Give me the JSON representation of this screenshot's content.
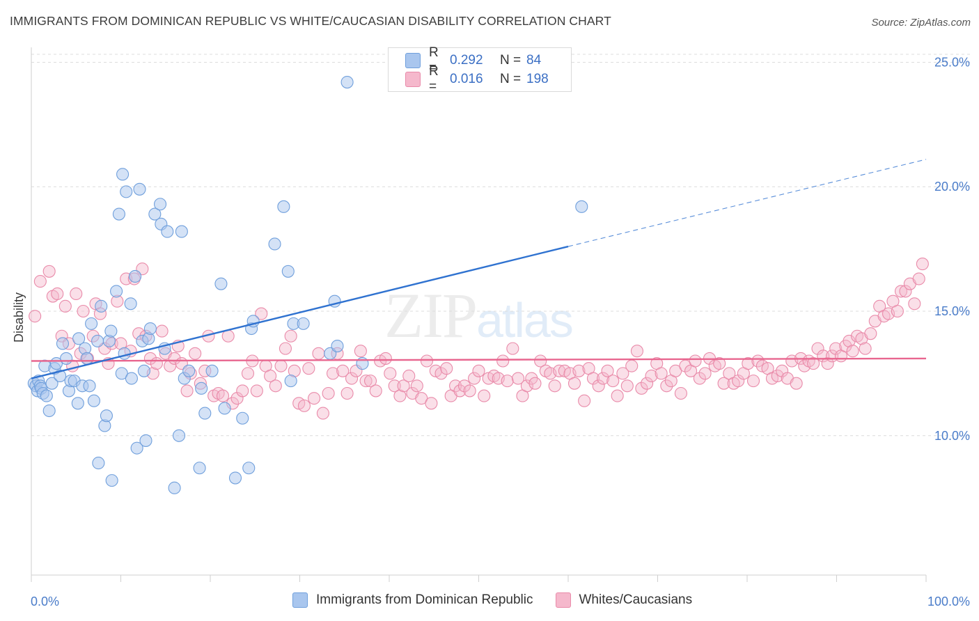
{
  "title": "IMMIGRANTS FROM DOMINICAN REPUBLIC VS WHITE/CAUCASIAN DISABILITY CORRELATION CHART",
  "source": "Source: ZipAtlas.com",
  "watermark": {
    "zip": "ZIP",
    "atlas": "atlas"
  },
  "legend_top": [
    {
      "r_label": "R =",
      "r_value": "0.292",
      "n_label": "N =",
      "n_value": "84"
    },
    {
      "r_label": "R =",
      "r_value": "0.016",
      "n_label": "N =",
      "n_value": "198"
    }
  ],
  "legend_bottom": [
    {
      "label": "Immigrants from Dominican Republic"
    },
    {
      "label": "Whites/Caucasians"
    }
  ],
  "colors": {
    "blue_fill": "#a9c6ee",
    "blue_stroke": "#6f9fdc",
    "blue_line": "#2f72d0",
    "pink_fill": "#f5b8cc",
    "pink_stroke": "#e98aa9",
    "pink_line": "#e8668f",
    "tick_text": "#4a7cc9",
    "grid": "#dcdcdc"
  },
  "chart_data": {
    "type": "scatter",
    "title": "IMMIGRANTS FROM DOMINICAN REPUBLIC VS WHITE/CAUCASIAN DISABILITY CORRELATION CHART",
    "xlabel": "",
    "ylabel": "Disability",
    "xlim": [
      0,
      100
    ],
    "ylim": [
      4.4,
      25.6
    ],
    "x_tick_labels": [
      "0.0%",
      "100.0%"
    ],
    "y_ticks": [
      10,
      15,
      20,
      25
    ],
    "y_tick_labels": [
      "10.0%",
      "15.0%",
      "20.0%",
      "25.0%"
    ],
    "grid": "horizontal dashed",
    "series": [
      {
        "name": "Immigrants from Dominican Republic",
        "color": "blue",
        "trend": {
          "x0": 0,
          "y0": 12.3,
          "x1": 60,
          "y1": 17.6,
          "dash_to_x": 100,
          "dash_to_y": 21.1
        },
        "points": [
          [
            0.3,
            12.1
          ],
          [
            0.5,
            12.0
          ],
          [
            0.7,
            11.8
          ],
          [
            0.8,
            12.2
          ],
          [
            1.0,
            12.0
          ],
          [
            1.1,
            11.9
          ],
          [
            1.3,
            11.7
          ],
          [
            1.5,
            12.8
          ],
          [
            1.7,
            11.6
          ],
          [
            2.0,
            11.0
          ],
          [
            2.3,
            12.1
          ],
          [
            2.6,
            12.7
          ],
          [
            2.8,
            12.9
          ],
          [
            3.2,
            12.4
          ],
          [
            3.5,
            13.7
          ],
          [
            3.9,
            13.1
          ],
          [
            4.2,
            11.8
          ],
          [
            4.4,
            12.2
          ],
          [
            4.8,
            12.2
          ],
          [
            5.2,
            11.3
          ],
          [
            5.3,
            13.9
          ],
          [
            5.7,
            12.0
          ],
          [
            6.0,
            13.5
          ],
          [
            6.2,
            13.1
          ],
          [
            6.5,
            12.0
          ],
          [
            6.7,
            14.5
          ],
          [
            7.0,
            11.4
          ],
          [
            7.4,
            13.8
          ],
          [
            7.5,
            8.9
          ],
          [
            7.8,
            15.2
          ],
          [
            8.2,
            10.4
          ],
          [
            8.4,
            10.8
          ],
          [
            8.7,
            13.8
          ],
          [
            8.9,
            14.2
          ],
          [
            9.0,
            8.2
          ],
          [
            9.5,
            15.8
          ],
          [
            9.8,
            18.9
          ],
          [
            10.1,
            12.5
          ],
          [
            10.2,
            20.5
          ],
          [
            10.4,
            13.3
          ],
          [
            10.6,
            19.8
          ],
          [
            11.1,
            15.3
          ],
          [
            11.2,
            12.3
          ],
          [
            11.6,
            16.4
          ],
          [
            11.8,
            9.5
          ],
          [
            12.1,
            19.9
          ],
          [
            12.4,
            13.8
          ],
          [
            12.6,
            12.6
          ],
          [
            12.8,
            9.8
          ],
          [
            13.1,
            13.9
          ],
          [
            13.3,
            14.3
          ],
          [
            13.8,
            18.9
          ],
          [
            14.4,
            19.3
          ],
          [
            14.5,
            18.5
          ],
          [
            14.9,
            13.5
          ],
          [
            15.2,
            18.2
          ],
          [
            16.0,
            7.9
          ],
          [
            16.5,
            10.0
          ],
          [
            16.8,
            18.2
          ],
          [
            17.1,
            12.3
          ],
          [
            17.6,
            12.6
          ],
          [
            18.8,
            8.7
          ],
          [
            19.0,
            11.9
          ],
          [
            19.4,
            10.9
          ],
          [
            20.2,
            12.6
          ],
          [
            21.2,
            16.1
          ],
          [
            21.6,
            11.1
          ],
          [
            22.8,
            8.3
          ],
          [
            23.6,
            10.7
          ],
          [
            24.3,
            8.7
          ],
          [
            24.6,
            14.3
          ],
          [
            24.8,
            14.6
          ],
          [
            27.2,
            17.7
          ],
          [
            28.2,
            19.2
          ],
          [
            28.7,
            16.6
          ],
          [
            29.0,
            12.2
          ],
          [
            29.3,
            14.5
          ],
          [
            30.4,
            14.5
          ],
          [
            33.4,
            13.3
          ],
          [
            33.9,
            15.4
          ],
          [
            34.2,
            13.6
          ],
          [
            35.3,
            24.2
          ],
          [
            37.0,
            12.9
          ],
          [
            61.5,
            19.2
          ]
        ]
      },
      {
        "name": "Whites/Caucasians",
        "color": "pink",
        "trend": {
          "x0": 0,
          "y0": 13.0,
          "x1": 100,
          "y1": 13.1
        },
        "points": [
          [
            0.4,
            14.8
          ],
          [
            1.0,
            16.2
          ],
          [
            2.0,
            16.6
          ],
          [
            2.4,
            15.6
          ],
          [
            2.9,
            15.7
          ],
          [
            3.4,
            14.0
          ],
          [
            3.8,
            15.2
          ],
          [
            4.2,
            13.7
          ],
          [
            4.6,
            12.8
          ],
          [
            5.0,
            15.7
          ],
          [
            5.5,
            13.3
          ],
          [
            5.8,
            15.0
          ],
          [
            6.3,
            13.1
          ],
          [
            6.9,
            14.0
          ],
          [
            7.2,
            15.3
          ],
          [
            7.7,
            14.9
          ],
          [
            8.2,
            13.5
          ],
          [
            8.6,
            12.9
          ],
          [
            9.0,
            13.7
          ],
          [
            9.6,
            15.4
          ],
          [
            10.0,
            13.7
          ],
          [
            10.6,
            16.3
          ],
          [
            11.1,
            13.4
          ],
          [
            11.5,
            16.3
          ],
          [
            12.0,
            14.1
          ],
          [
            12.4,
            16.7
          ],
          [
            12.8,
            14.0
          ],
          [
            13.3,
            13.1
          ],
          [
            13.6,
            12.5
          ],
          [
            14.0,
            12.9
          ],
          [
            14.6,
            14.2
          ],
          [
            15.0,
            13.3
          ],
          [
            15.5,
            12.8
          ],
          [
            16.0,
            13.1
          ],
          [
            16.4,
            13.6
          ],
          [
            16.8,
            12.9
          ],
          [
            17.4,
            11.8
          ],
          [
            17.8,
            12.5
          ],
          [
            18.3,
            13.3
          ],
          [
            18.9,
            12.1
          ],
          [
            19.4,
            12.6
          ],
          [
            19.8,
            14.0
          ],
          [
            20.4,
            11.6
          ],
          [
            20.9,
            11.7
          ],
          [
            21.4,
            11.6
          ],
          [
            22.0,
            14.0
          ],
          [
            22.5,
            11.3
          ],
          [
            23.0,
            11.5
          ],
          [
            23.6,
            11.8
          ],
          [
            24.2,
            12.5
          ],
          [
            24.7,
            13.0
          ],
          [
            25.2,
            11.8
          ],
          [
            25.7,
            14.9
          ],
          [
            26.2,
            12.8
          ],
          [
            26.7,
            12.4
          ],
          [
            27.3,
            12.0
          ],
          [
            27.9,
            12.8
          ],
          [
            28.4,
            13.5
          ],
          [
            29.0,
            14.0
          ],
          [
            29.4,
            12.6
          ],
          [
            29.9,
            11.3
          ],
          [
            30.5,
            11.2
          ],
          [
            31.0,
            12.7
          ],
          [
            31.6,
            11.5
          ],
          [
            32.1,
            13.3
          ],
          [
            32.6,
            10.9
          ],
          [
            33.2,
            11.7
          ],
          [
            33.7,
            12.5
          ],
          [
            34.2,
            13.3
          ],
          [
            34.8,
            12.6
          ],
          [
            35.3,
            11.7
          ],
          [
            35.8,
            12.3
          ],
          [
            36.3,
            12.6
          ],
          [
            36.8,
            13.4
          ],
          [
            37.4,
            12.2
          ],
          [
            37.9,
            12.2
          ],
          [
            38.5,
            11.8
          ],
          [
            39.0,
            13.0
          ],
          [
            39.6,
            13.1
          ],
          [
            40.1,
            12.5
          ],
          [
            40.6,
            12.0
          ],
          [
            41.2,
            11.6
          ],
          [
            41.6,
            12.0
          ],
          [
            42.2,
            12.4
          ],
          [
            42.6,
            11.7
          ],
          [
            43.1,
            12.0
          ],
          [
            43.6,
            11.5
          ],
          [
            44.2,
            13.0
          ],
          [
            44.7,
            11.3
          ],
          [
            45.2,
            12.6
          ],
          [
            45.8,
            12.5
          ],
          [
            46.4,
            12.7
          ],
          [
            46.9,
            11.6
          ],
          [
            47.4,
            12.0
          ],
          [
            47.9,
            11.8
          ],
          [
            48.4,
            12.0
          ],
          [
            49.0,
            11.8
          ],
          [
            49.5,
            12.3
          ],
          [
            50.0,
            12.6
          ],
          [
            50.6,
            11.6
          ],
          [
            51.1,
            12.3
          ],
          [
            51.7,
            12.4
          ],
          [
            52.2,
            12.3
          ],
          [
            52.7,
            13.0
          ],
          [
            53.2,
            12.2
          ],
          [
            53.8,
            13.5
          ],
          [
            54.4,
            12.3
          ],
          [
            54.9,
            11.6
          ],
          [
            55.4,
            12.0
          ],
          [
            55.9,
            12.3
          ],
          [
            56.3,
            12.1
          ],
          [
            56.9,
            13.0
          ],
          [
            57.5,
            12.6
          ],
          [
            58.0,
            12.5
          ],
          [
            58.5,
            12.0
          ],
          [
            59.0,
            12.6
          ],
          [
            59.6,
            12.6
          ],
          [
            60.2,
            12.5
          ],
          [
            60.7,
            12.1
          ],
          [
            61.2,
            12.6
          ],
          [
            61.8,
            11.4
          ],
          [
            62.3,
            12.7
          ],
          [
            62.8,
            12.3
          ],
          [
            63.4,
            12.0
          ],
          [
            63.9,
            12.3
          ],
          [
            64.4,
            12.6
          ],
          [
            65.0,
            12.2
          ],
          [
            65.5,
            11.6
          ],
          [
            66.1,
            12.5
          ],
          [
            66.6,
            12.0
          ],
          [
            67.1,
            12.8
          ],
          [
            67.7,
            13.4
          ],
          [
            68.2,
            11.9
          ],
          [
            68.8,
            12.1
          ],
          [
            69.3,
            12.4
          ],
          [
            69.9,
            12.9
          ],
          [
            70.4,
            12.5
          ],
          [
            71.0,
            12.0
          ],
          [
            71.5,
            12.2
          ],
          [
            72.0,
            12.6
          ],
          [
            72.6,
            11.7
          ],
          [
            73.1,
            12.8
          ],
          [
            73.7,
            12.6
          ],
          [
            74.2,
            13.0
          ],
          [
            74.7,
            12.3
          ],
          [
            75.3,
            12.5
          ],
          [
            75.8,
            13.1
          ],
          [
            76.4,
            12.8
          ],
          [
            76.9,
            12.9
          ],
          [
            77.4,
            12.1
          ],
          [
            78.0,
            12.5
          ],
          [
            78.5,
            12.1
          ],
          [
            79.0,
            12.2
          ],
          [
            79.6,
            12.5
          ],
          [
            80.1,
            12.9
          ],
          [
            80.7,
            12.2
          ],
          [
            81.2,
            13.0
          ],
          [
            81.7,
            12.8
          ],
          [
            82.3,
            12.7
          ],
          [
            82.8,
            12.3
          ],
          [
            83.4,
            12.4
          ],
          [
            83.9,
            12.6
          ],
          [
            84.5,
            12.3
          ],
          [
            85.0,
            13.0
          ],
          [
            85.5,
            12.1
          ],
          [
            86.0,
            13.1
          ],
          [
            86.4,
            12.8
          ],
          [
            86.9,
            13.0
          ],
          [
            87.4,
            12.9
          ],
          [
            87.9,
            13.5
          ],
          [
            88.5,
            13.2
          ],
          [
            89.0,
            12.9
          ],
          [
            89.5,
            13.2
          ],
          [
            89.9,
            13.5
          ],
          [
            90.5,
            13.2
          ],
          [
            91.0,
            13.6
          ],
          [
            91.4,
            13.8
          ],
          [
            91.8,
            13.4
          ],
          [
            92.3,
            14.0
          ],
          [
            92.8,
            13.9
          ],
          [
            93.2,
            13.5
          ],
          [
            93.8,
            14.1
          ],
          [
            94.3,
            14.6
          ],
          [
            94.8,
            15.2
          ],
          [
            95.3,
            14.8
          ],
          [
            95.8,
            14.9
          ],
          [
            96.3,
            15.4
          ],
          [
            96.8,
            15.0
          ],
          [
            97.2,
            15.8
          ],
          [
            97.7,
            15.8
          ],
          [
            98.2,
            16.1
          ],
          [
            98.7,
            15.3
          ],
          [
            99.2,
            16.3
          ],
          [
            99.6,
            16.9
          ]
        ]
      }
    ]
  }
}
